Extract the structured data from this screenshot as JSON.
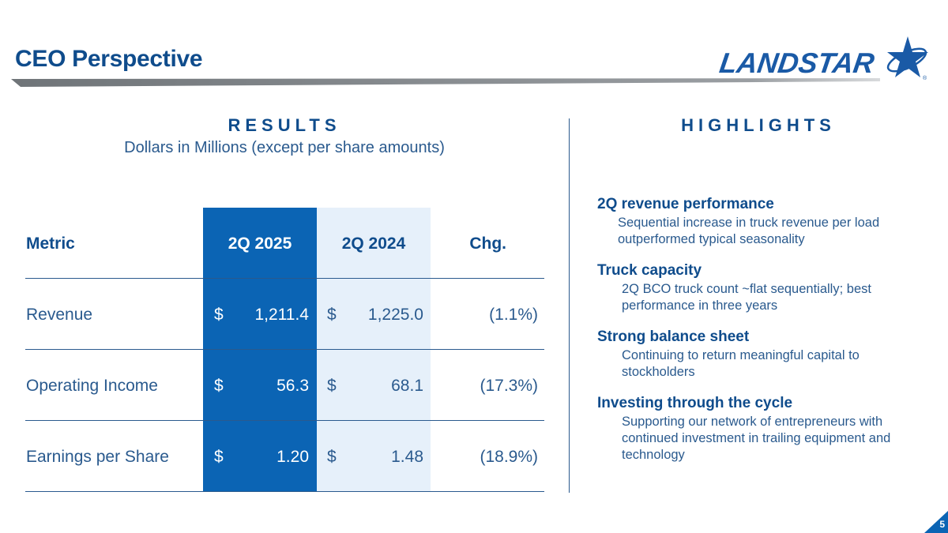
{
  "slide": {
    "title": "CEO Perspective",
    "page_number": "5"
  },
  "logo": {
    "text": "LANDSTAR",
    "mark": "®"
  },
  "results": {
    "heading": "RESULTS",
    "subheading": "Dollars in Millions (except per share amounts)",
    "columns": [
      "Metric",
      "2Q 2025",
      "2Q 2024",
      "Chg."
    ],
    "rows": [
      {
        "metric": "Revenue",
        "cur_2025": "$",
        "val_2025": "1,211.4",
        "cur_2024": "$",
        "val_2024": "1,225.0",
        "chg": "(1.1%)"
      },
      {
        "metric": "Operating Income",
        "cur_2025": "$",
        "val_2025": "56.3",
        "cur_2024": "$",
        "val_2024": "68.1",
        "chg": "(17.3%)"
      },
      {
        "metric": "Earnings per Share",
        "cur_2025": "$",
        "val_2025": "1.20",
        "cur_2024": "$",
        "val_2024": "1.48",
        "chg": "(18.9%)"
      }
    ]
  },
  "highlights": {
    "heading": "HIGHLIGHTS",
    "items": [
      {
        "title": "2Q revenue performance",
        "text": "Sequential increase in truck revenue per load outperformed typical seasonality"
      },
      {
        "title": "Truck capacity",
        "text": "2Q BCO truck count ~flat sequentially; best performance in three years"
      },
      {
        "title": "Strong balance sheet",
        "text": "Continuing to return meaningful capital to stockholders"
      },
      {
        "title": "Investing through the cycle",
        "text": "Supporting our network of entrepreneurs with continued investment in trailing equipment and technology"
      }
    ]
  },
  "colors": {
    "brand_blue": "#0f4c8c",
    "highlight_column": "#0b64b4",
    "light_column": "#e6f0fa"
  }
}
